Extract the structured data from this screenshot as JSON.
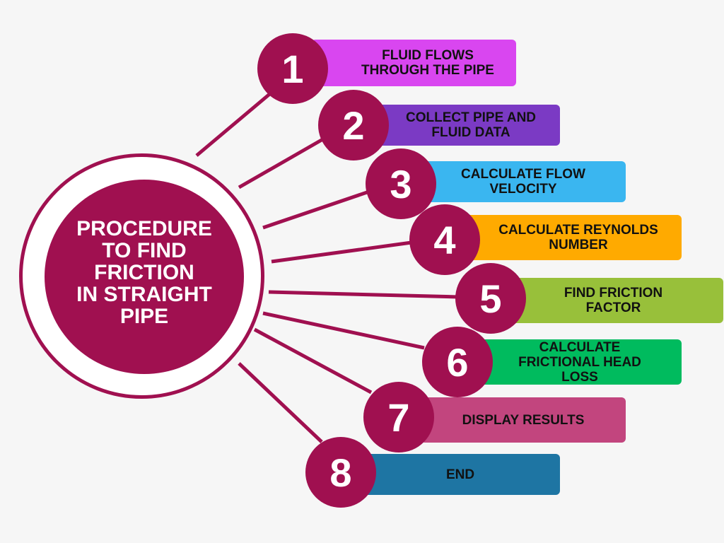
{
  "hub": {
    "title": "PROCEDURE\nTO FIND\nFRICTION\nIN STRAIGHT\nPIPE",
    "color": "#a01050"
  },
  "steps": [
    {
      "number": "1",
      "label": "FLUID FLOWS\nTHROUGH THE PIPE",
      "color": "#d946f0"
    },
    {
      "number": "2",
      "label": "COLLECT PIPE AND\nFLUID DATA",
      "color": "#7b3ac4"
    },
    {
      "number": "3",
      "label": "CALCULATE FLOW\nVELOCITY",
      "color": "#3ab6f0"
    },
    {
      "number": "4",
      "label": "CALCULATE REYNOLDS\nNUMBER",
      "color": "#ffaa00"
    },
    {
      "number": "5",
      "label": "FIND FRICTION\nFACTOR",
      "color": "#98c03a"
    },
    {
      "number": "6",
      "label": "CALCULATE\nFRICTIONAL HEAD\nLOSS",
      "color": "#00bb5e"
    },
    {
      "number": "7",
      "label": "DISPLAY RESULTS",
      "color": "#c2457e"
    },
    {
      "number": "8",
      "label": "END",
      "color": "#1e75a3"
    }
  ]
}
